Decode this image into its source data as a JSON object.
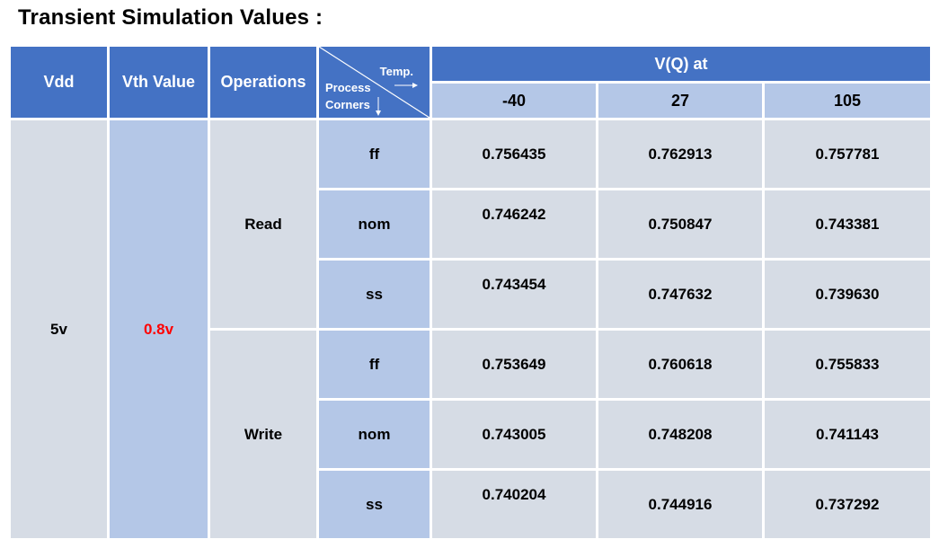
{
  "title": "Transient Simulation Values :",
  "headers": {
    "vdd": "Vdd",
    "vth": "Vth Value",
    "operations": "Operations",
    "temp_label": "Temp.",
    "process_label": "Process",
    "corners_label": "Corners",
    "vq_at": "V(Q) at",
    "temps": [
      "-40",
      "27",
      "105"
    ]
  },
  "vdd_value": "5v",
  "vth_value": "0.8v",
  "operations": [
    "Read",
    "Write"
  ],
  "rows": [
    {
      "corner": "ff",
      "v": [
        "0.756435",
        "0.762913",
        "0.757781"
      ]
    },
    {
      "corner": "nom",
      "v": [
        "0.746242",
        "0.750847",
        "0.743381"
      ]
    },
    {
      "corner": "ss",
      "v": [
        "0.743454",
        "0.747632",
        "0.739630"
      ]
    },
    {
      "corner": "ff",
      "v": [
        "0.753649",
        "0.760618",
        "0.755833"
      ]
    },
    {
      "corner": "nom",
      "v": [
        "0.743005",
        "0.748208",
        "0.741143"
      ]
    },
    {
      "corner": "ss",
      "v": [
        "0.740204",
        "0.744916",
        "0.737292"
      ]
    }
  ],
  "colors": {
    "header_blue": "#4472c4",
    "subheader_light_blue": "#b4c7e7",
    "body_gray": "#d6dce5",
    "highlight_red": "#ff0000"
  }
}
